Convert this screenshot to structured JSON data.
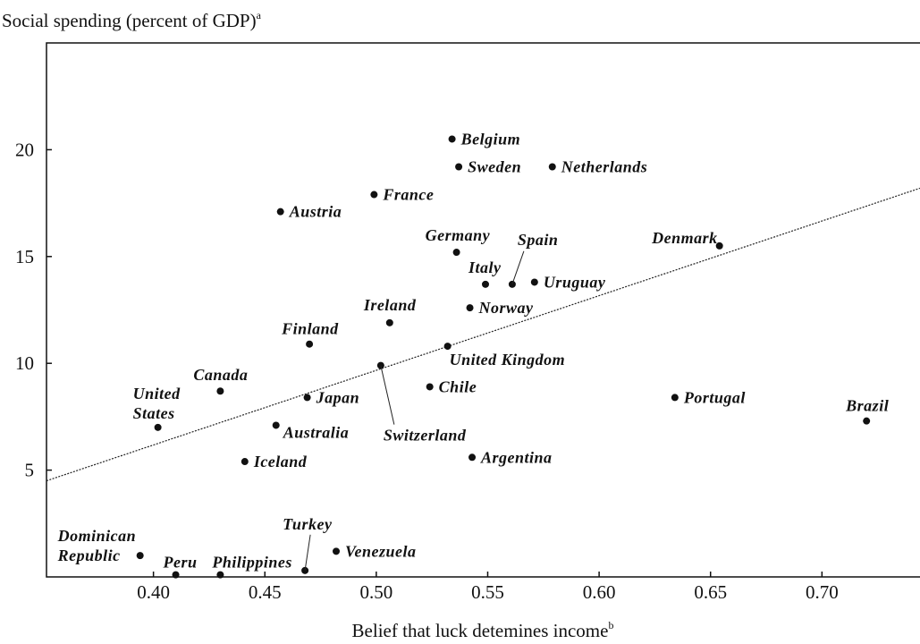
{
  "chart_data": {
    "type": "scatter",
    "title": "Social spending (percent of GDP)",
    "title_note": "a",
    "xlabel": "Belief that luck detemines income",
    "xlabel_note": "b",
    "xlim": [
      0.352,
      0.744
    ],
    "ylim": [
      0,
      25
    ],
    "xticks": [
      {
        "value": 0.4,
        "label": "0.40"
      },
      {
        "value": 0.45,
        "label": "0.45"
      },
      {
        "value": 0.5,
        "label": "0.50"
      },
      {
        "value": 0.55,
        "label": "0.55"
      },
      {
        "value": 0.6,
        "label": "0.60"
      },
      {
        "value": 0.65,
        "label": "0.65"
      },
      {
        "value": 0.7,
        "label": "0.70"
      }
    ],
    "yticks": [
      5,
      10,
      15,
      20
    ],
    "color": "#111111",
    "labels": [
      "Belgium",
      "Sweden",
      "Netherlands",
      "France",
      "Austria",
      "Germany",
      "Spain",
      "Italy",
      "Uruguay",
      "Denmark",
      "Ireland",
      "Norway",
      "Finland",
      "United Kingdom",
      "Switzerland",
      "Canada",
      "Japan",
      "Chile",
      "Portugal",
      "Brazil",
      "United States",
      "Australia",
      "Iceland",
      "Argentina",
      "Dominican Republic",
      "Peru",
      "Philippines",
      "Turkey",
      "Venezuela"
    ],
    "x": [
      0.534,
      0.537,
      0.579,
      0.499,
      0.457,
      0.536,
      0.561,
      0.549,
      0.571,
      0.654,
      0.506,
      0.542,
      0.47,
      0.532,
      0.502,
      0.43,
      0.469,
      0.524,
      0.634,
      0.72,
      0.402,
      0.455,
      0.441,
      0.543,
      0.394,
      0.41,
      0.43,
      0.468,
      0.482
    ],
    "y": [
      20.5,
      19.2,
      19.2,
      17.9,
      17.1,
      15.2,
      13.7,
      13.7,
      13.8,
      15.5,
      11.9,
      12.6,
      10.9,
      10.8,
      9.9,
      8.7,
      8.4,
      8.9,
      8.4,
      7.3,
      7.0,
      7.1,
      5.4,
      5.6,
      1.0,
      0.1,
      0.1,
      0.3,
      1.2
    ],
    "trend": {
      "x": [
        0.352,
        0.744
      ],
      "y": [
        4.5,
        18.2
      ]
    }
  }
}
